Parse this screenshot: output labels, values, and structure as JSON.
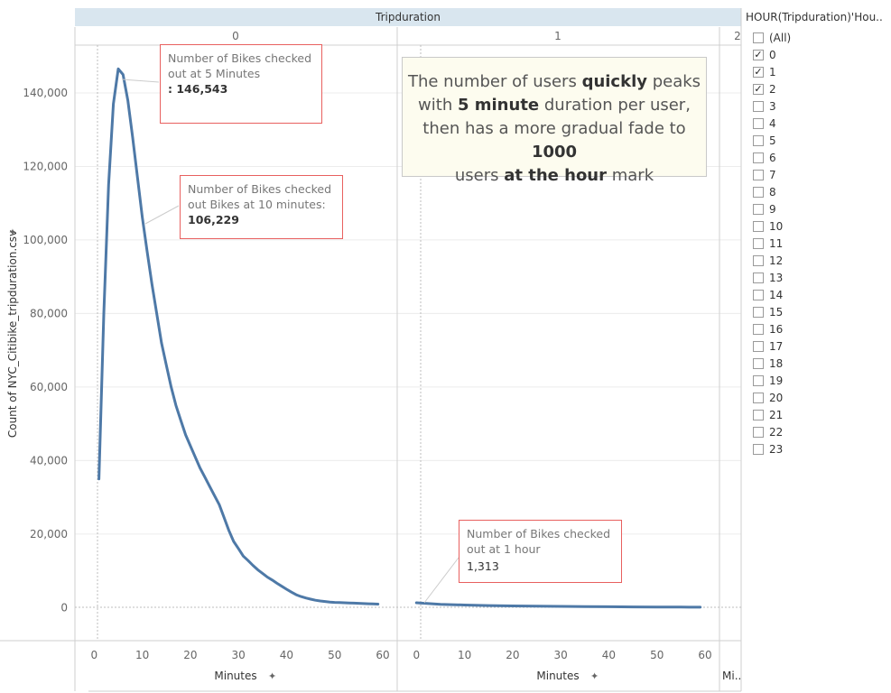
{
  "header": {
    "title": "Tripduration"
  },
  "panels": [
    {
      "label": "0"
    },
    {
      "label": "1"
    },
    {
      "label": "2"
    }
  ],
  "axes": {
    "y_label": "Count of NYC_Citibike_tripduration.csv",
    "x_label": "Minutes",
    "x_label_cut": "Mi.."
  },
  "annotations": [
    {
      "text": "Number of Bikes checked out at 5 Minutes",
      "value": ": 146,543"
    },
    {
      "text": "Number of Bikes checked out Bikes at 10 minutes:",
      "value": "106,229"
    },
    {
      "text": "Number of Bikes checked out at 1 hour",
      "value": "1,313"
    }
  ],
  "story": {
    "line1_a": "The number of users ",
    "line1_b": "quickly",
    "line1_c": " peaks",
    "line2_a": "with ",
    "line2_b": "5 minute",
    "line2_c": " duration per user,",
    "line3_a": "then has a more gradual fade to ",
    "line3_b": "1000",
    "line4_a": "users ",
    "line4_b": "at the hour",
    "line4_c": " mark"
  },
  "filter": {
    "title": "HOUR(Tripduration)'Hou..",
    "items": [
      {
        "label": "(All)",
        "checked": false
      },
      {
        "label": "0",
        "checked": true
      },
      {
        "label": "1",
        "checked": true
      },
      {
        "label": "2",
        "checked": true
      },
      {
        "label": "3",
        "checked": false
      },
      {
        "label": "4",
        "checked": false
      },
      {
        "label": "5",
        "checked": false
      },
      {
        "label": "6",
        "checked": false
      },
      {
        "label": "7",
        "checked": false
      },
      {
        "label": "8",
        "checked": false
      },
      {
        "label": "9",
        "checked": false
      },
      {
        "label": "10",
        "checked": false
      },
      {
        "label": "11",
        "checked": false
      },
      {
        "label": "12",
        "checked": false
      },
      {
        "label": "13",
        "checked": false
      },
      {
        "label": "14",
        "checked": false
      },
      {
        "label": "15",
        "checked": false
      },
      {
        "label": "16",
        "checked": false
      },
      {
        "label": "17",
        "checked": false
      },
      {
        "label": "18",
        "checked": false
      },
      {
        "label": "19",
        "checked": false
      },
      {
        "label": "20",
        "checked": false
      },
      {
        "label": "21",
        "checked": false
      },
      {
        "label": "22",
        "checked": false
      },
      {
        "label": "23",
        "checked": false
      }
    ]
  },
  "chart_data": {
    "type": "line",
    "y_ticks": [
      "0",
      "20,000",
      "40,000",
      "60,000",
      "80,000",
      "100,000",
      "120,000",
      "140,000"
    ],
    "x_ticks": [
      "0",
      "10",
      "20",
      "30",
      "40",
      "50",
      "60"
    ],
    "ylim": [
      -9000,
      153000
    ],
    "xlim": [
      -4,
      63
    ],
    "grid": true,
    "series": [
      {
        "panel": "0",
        "x": [
          1,
          2,
          3,
          4,
          5,
          6,
          7,
          8,
          9,
          10,
          11,
          12,
          13,
          14,
          15,
          16,
          17,
          18,
          19,
          20,
          21,
          22,
          23,
          24,
          25,
          26,
          27,
          28,
          29,
          30,
          31,
          32,
          33,
          34,
          35,
          36,
          37,
          38,
          39,
          40,
          41,
          42,
          43,
          44,
          45,
          46,
          47,
          48,
          49,
          50,
          51,
          52,
          53,
          54,
          55,
          56,
          57,
          58,
          59
        ],
        "y": [
          35000,
          80000,
          115000,
          137000,
          146543,
          145000,
          138000,
          128000,
          117000,
          106229,
          97000,
          88000,
          80000,
          72000,
          66000,
          60000,
          55000,
          51000,
          47000,
          44000,
          41000,
          38000,
          35500,
          33000,
          30500,
          28000,
          24500,
          21000,
          18000,
          16000,
          14000,
          12800,
          11500,
          10300,
          9300,
          8300,
          7500,
          6600,
          5800,
          5000,
          4200,
          3500,
          3000,
          2600,
          2300,
          2000,
          1800,
          1650,
          1500,
          1400,
          1350,
          1300,
          1250,
          1200,
          1150,
          1100,
          1050,
          1000,
          950
        ]
      },
      {
        "panel": "1",
        "x": [
          0,
          5,
          10,
          15,
          20,
          25,
          30,
          35,
          40,
          45,
          50,
          55,
          59
        ],
        "y": [
          1313,
          900,
          700,
          550,
          450,
          380,
          320,
          270,
          230,
          190,
          160,
          130,
          110
        ]
      }
    ]
  }
}
